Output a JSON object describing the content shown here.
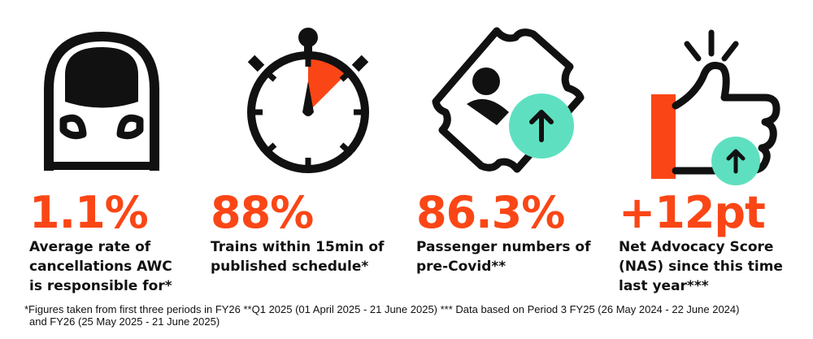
{
  "colors": {
    "accent": "#fa4616",
    "mint": "#5ee0c0",
    "ink": "#111111"
  },
  "stats": [
    {
      "icon": "train-front-icon",
      "value": "1.1%",
      "label": [
        "Average rate of",
        "cancellations AWC",
        "is responsible for*"
      ]
    },
    {
      "icon": "stopwatch-icon",
      "value": "88%",
      "label": [
        "Trains within 15min of",
        "published schedule*"
      ]
    },
    {
      "icon": "ticket-passenger-up-icon",
      "value": "86.3%",
      "label": [
        "Passenger numbers of",
        "pre-Covid**"
      ]
    },
    {
      "icon": "thumbs-up-arrow-icon",
      "value": "+12pt",
      "label": [
        "Net Advocacy Score",
        "(NAS) since this time",
        "last year***"
      ]
    }
  ],
  "footnote": {
    "line1": "*Figures taken from first three periods in FY26   **Q1 2025   (01 April 2025 - 21 June 2025)   *** Data based on Period 3 FY25 (26 May 2024 - 22 June 2024)",
    "line2": "and FY26 (25 May 2025 - 21 June 2025)"
  }
}
